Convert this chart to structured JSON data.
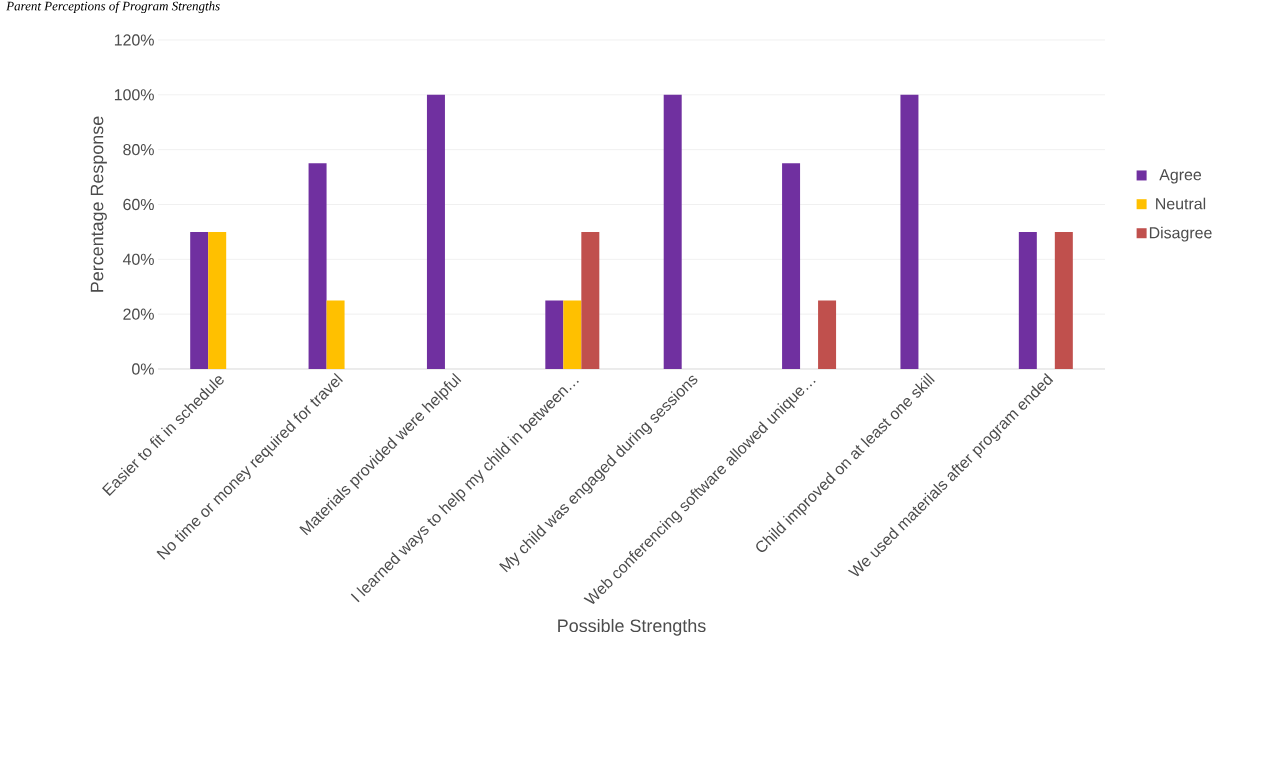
{
  "chart_data": {
    "type": "bar",
    "title": "Parent Perceptions of Program Strengths",
    "xlabel": "Possible Strengths",
    "ylabel": "Percentage Response",
    "categories": [
      "Easier to fit in schedule",
      "No time or money required for travel",
      "Materials provided were helpful",
      "I learned ways to help my child in between…",
      "My child was engaged during sessions",
      "Web conferencing software allowed unique…",
      "Child improved on at least one skill",
      "We used materials after program ended"
    ],
    "series": [
      {
        "name": "Agree",
        "color": "#7030a0",
        "values": [
          50,
          75,
          100,
          25,
          100,
          75,
          100,
          50
        ]
      },
      {
        "name": "Neutral",
        "color": "#ffc000",
        "values": [
          50,
          25,
          0,
          25,
          0,
          0,
          0,
          0
        ]
      },
      {
        "name": "Disagree",
        "color": "#c0504d",
        "values": [
          0,
          0,
          0,
          50,
          0,
          25,
          0,
          50
        ]
      }
    ],
    "ylim": [
      0,
      120
    ],
    "yticks": [
      {
        "value": 0,
        "label": "0%"
      },
      {
        "value": 20,
        "label": "20%"
      },
      {
        "value": 40,
        "label": "40%"
      },
      {
        "value": 60,
        "label": "60%"
      },
      {
        "value": 80,
        "label": "80%"
      },
      {
        "value": 100,
        "label": "100%"
      },
      {
        "value": 120,
        "label": "120%"
      }
    ],
    "grid": "y",
    "legend": "right"
  }
}
